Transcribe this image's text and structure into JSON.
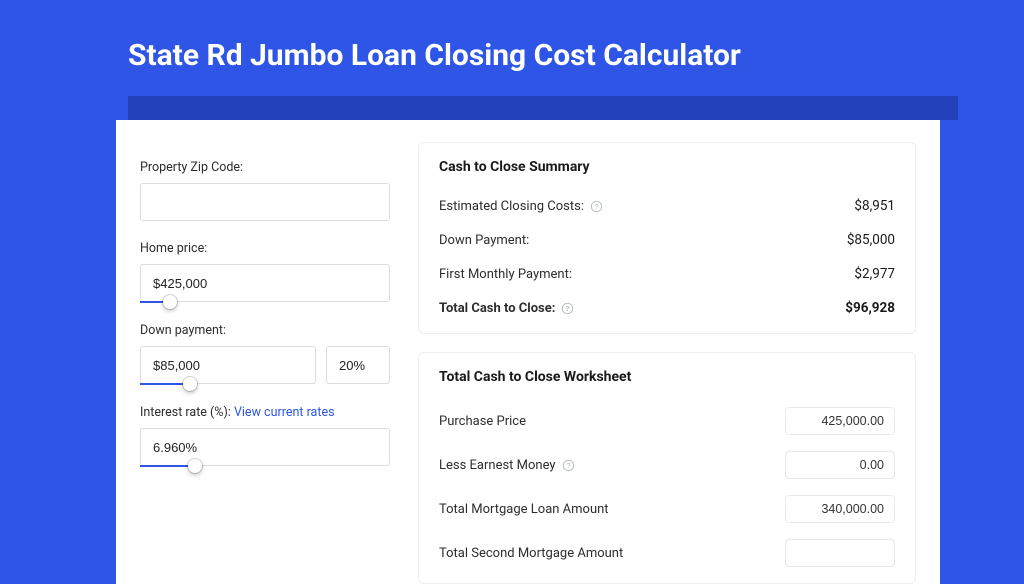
{
  "colors": {
    "page_bg": "#2e55e6",
    "header_strip": "#2241ba",
    "card_bg": "#ffffff",
    "border": "#d9dce3",
    "section_border": "#edeef2",
    "accent": "#2e55e6",
    "text": "#2d2d2d",
    "text_strong": "#1a1a1a"
  },
  "title": "State Rd Jumbo Loan Closing Cost Calculator",
  "form": {
    "zip": {
      "label": "Property Zip Code:",
      "value": ""
    },
    "home_price": {
      "label": "Home price:",
      "value": "$425,000",
      "slider_pct": 12
    },
    "down_payment": {
      "label": "Down payment:",
      "amount": "$85,000",
      "percent": "20%",
      "slider_pct": 20
    },
    "interest_rate": {
      "label": "Interest rate (%): ",
      "link_text": "View current rates",
      "value": "6.960%",
      "slider_pct": 22
    }
  },
  "summary": {
    "title": "Cash to Close Summary",
    "rows": [
      {
        "label": "Estimated Closing Costs:",
        "help": true,
        "value": "$8,951",
        "bold": false
      },
      {
        "label": "Down Payment:",
        "help": false,
        "value": "$85,000",
        "bold": false
      },
      {
        "label": "First Monthly Payment:",
        "help": false,
        "value": "$2,977",
        "bold": false
      },
      {
        "label": "Total Cash to Close:",
        "help": true,
        "value": "$96,928",
        "bold": true
      }
    ]
  },
  "worksheet": {
    "title": "Total Cash to Close Worksheet",
    "rows": [
      {
        "label": "Purchase Price",
        "help": false,
        "value": "425,000.00"
      },
      {
        "label": "Less Earnest Money",
        "help": true,
        "value": "0.00"
      },
      {
        "label": "Total Mortgage Loan Amount",
        "help": false,
        "value": "340,000.00"
      },
      {
        "label": "Total Second Mortgage Amount",
        "help": false,
        "value": ""
      }
    ]
  }
}
